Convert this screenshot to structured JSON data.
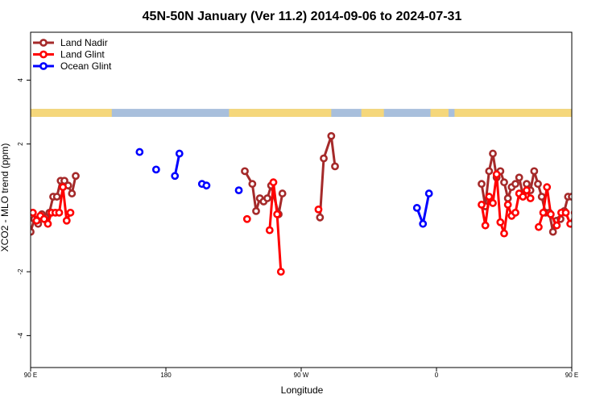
{
  "chart_data": {
    "type": "line",
    "title": "45N-50N January (Ver 11.2)   2014-09-06 to 2024-07-31",
    "xlabel": "Longitude",
    "ylabel": "XCO2 - MLO trend (ppm)",
    "xlim": [
      90,
      450
    ],
    "ylim": [
      -5,
      5.5
    ],
    "x_tick_values": [
      90,
      180,
      270,
      360,
      450,
      540
    ],
    "x_tick_labels": [
      "90 E",
      "180",
      "90 W",
      "0",
      "90 E",
      "180"
    ],
    "y_tick_values": [
      -4,
      -2,
      2,
      4
    ],
    "y_tick_labels": [
      "-4",
      "-2",
      "2",
      "4"
    ],
    "land_ocean_strip": {
      "y_range": [
        2.85,
        3.1
      ],
      "land_color": "#f5d77b",
      "ocean_color": "#a8bfdc",
      "land_segments": [
        [
          90,
          144
        ],
        [
          222,
          290
        ],
        [
          310,
          325
        ],
        [
          356,
          368
        ],
        [
          372,
          502
        ]
      ]
    },
    "legend_position": "top-left",
    "series": [
      {
        "name": "Land Nadir",
        "color": "#a52a2a",
        "points": [
          [
            90,
            -0.75
          ],
          [
            92.5,
            -0.35
          ],
          [
            95,
            -0.5
          ],
          [
            97.5,
            -0.2
          ],
          [
            100,
            -0.3
          ],
          [
            102.5,
            -0.15
          ],
          [
            105,
            0.35
          ],
          [
            107.5,
            0.35
          ],
          [
            110,
            0.85
          ],
          [
            112.5,
            0.85
          ],
          [
            115,
            0.7
          ],
          [
            117.5,
            0.45
          ],
          [
            120,
            1.0
          ],
          null,
          [
            232.5,
            1.15
          ],
          [
            237.5,
            0.75
          ],
          [
            240,
            -0.1
          ],
          [
            242.5,
            0.3
          ],
          [
            245,
            0.2
          ],
          [
            247.5,
            0.3
          ],
          [
            250,
            0.7
          ],
          [
            255,
            -0.2
          ],
          [
            257.5,
            0.45
          ],
          null,
          [
            282.5,
            -0.3
          ],
          [
            285,
            1.55
          ],
          [
            290,
            2.25
          ],
          [
            292.5,
            1.3
          ],
          null,
          [
            390,
            0.75
          ],
          [
            392.5,
            0.05
          ],
          [
            395,
            1.15
          ],
          [
            397.5,
            1.7
          ],
          [
            400,
            0.95
          ],
          [
            402.5,
            1.15
          ],
          [
            405,
            0.8
          ],
          [
            407.5,
            0.3
          ],
          [
            410,
            0.65
          ],
          [
            412.5,
            0.75
          ],
          [
            415,
            0.95
          ],
          [
            417.5,
            0.4
          ],
          [
            420,
            0.75
          ],
          [
            422.5,
            0.55
          ],
          [
            425,
            1.15
          ],
          [
            427.5,
            0.75
          ],
          [
            430,
            0.35
          ],
          [
            432.5,
            -0.15
          ],
          [
            435,
            -0.15
          ],
          [
            437.5,
            -0.75
          ],
          [
            440,
            -0.4
          ],
          [
            442.5,
            -0.35
          ],
          [
            445,
            -0.1
          ],
          [
            447.5,
            0.35
          ],
          [
            450,
            0.35
          ],
          [
            452.5,
            0.85
          ],
          [
            455,
            0.85
          ],
          [
            457.5,
            0.7
          ],
          [
            460,
            0.45
          ],
          [
            462.5,
            1.0
          ]
        ]
      },
      {
        "name": "Land Glint",
        "color": "#ff0000",
        "points": [
          [
            91.5,
            -0.15
          ],
          [
            94,
            -0.4
          ],
          [
            96.5,
            -0.25
          ],
          [
            99,
            -0.35
          ],
          [
            101.5,
            -0.5
          ],
          [
            104,
            -0.15
          ],
          [
            106.5,
            -0.15
          ],
          [
            109,
            -0.15
          ],
          [
            111.5,
            0.65
          ],
          [
            114,
            -0.4
          ],
          [
            116.5,
            -0.15
          ],
          null,
          [
            234,
            -0.35
          ],
          null,
          [
            249,
            -0.7
          ],
          [
            251.5,
            0.8
          ],
          [
            254,
            -0.2
          ],
          [
            256.5,
            -2.0
          ],
          null,
          [
            281.5,
            -0.05
          ],
          null,
          [
            390,
            0.1
          ],
          [
            392.5,
            -0.55
          ],
          [
            395,
            0.35
          ],
          [
            397.5,
            0.15
          ],
          [
            400,
            1.05
          ],
          [
            402.5,
            -0.45
          ],
          [
            405,
            -0.8
          ],
          [
            407.5,
            0.1
          ],
          [
            410,
            -0.25
          ],
          [
            412.5,
            -0.15
          ],
          [
            415,
            0.45
          ],
          [
            417.5,
            0.35
          ],
          [
            420,
            0.55
          ],
          [
            422.5,
            0.3
          ],
          null,
          [
            428,
            -0.6
          ],
          [
            431,
            -0.15
          ],
          [
            433.5,
            0.65
          ],
          [
            436,
            -0.2
          ],
          [
            440,
            -0.55
          ],
          [
            443,
            -0.15
          ],
          [
            446,
            -0.15
          ],
          [
            449,
            -0.5
          ],
          [
            452,
            -0.15
          ],
          [
            455,
            -0.1
          ],
          [
            457.5,
            0.65
          ],
          [
            460,
            -0.4
          ],
          [
            462.5,
            -0.1
          ]
        ]
      },
      {
        "name": "Ocean Glint",
        "color": "#0000ff",
        "points": [
          [
            162.5,
            1.75
          ],
          null,
          [
            173.5,
            1.2
          ],
          null,
          [
            186,
            1.0
          ],
          [
            189,
            1.7
          ],
          null,
          [
            204,
            0.75
          ],
          [
            207,
            0.7
          ],
          null,
          [
            228.5,
            0.55
          ],
          null,
          [
            347,
            0.0
          ],
          [
            351,
            -0.5
          ],
          [
            355,
            0.45
          ],
          null,
          [
            479,
            1.75
          ],
          null,
          [
            497.5,
            1.2
          ]
        ]
      }
    ]
  }
}
